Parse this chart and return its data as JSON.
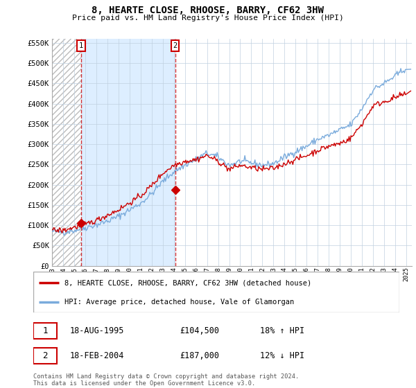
{
  "title": "8, HEARTE CLOSE, RHOOSE, BARRY, CF62 3HW",
  "subtitle": "Price paid vs. HM Land Registry's House Price Index (HPI)",
  "legend_label_red": "8, HEARTE CLOSE, RHOOSE, BARRY, CF62 3HW (detached house)",
  "legend_label_blue": "HPI: Average price, detached house, Vale of Glamorgan",
  "sale1_date": "18-AUG-1995",
  "sale1_price": "£104,500",
  "sale1_hpi": "18% ↑ HPI",
  "sale2_date": "18-FEB-2004",
  "sale2_price": "£187,000",
  "sale2_hpi": "12% ↓ HPI",
  "footer": "Contains HM Land Registry data © Crown copyright and database right 2024.\nThis data is licensed under the Open Government Licence v3.0.",
  "ylim": [
    0,
    560000
  ],
  "yticks": [
    0,
    50000,
    100000,
    150000,
    200000,
    250000,
    300000,
    350000,
    400000,
    450000,
    500000,
    550000
  ],
  "ytick_labels": [
    "£0",
    "£50K",
    "£100K",
    "£150K",
    "£200K",
    "£250K",
    "£300K",
    "£350K",
    "£400K",
    "£450K",
    "£500K",
    "£550K"
  ],
  "color_red": "#cc0000",
  "color_blue": "#7aabdc",
  "color_grid": "#c8d8e8",
  "sale1_x": 1995.625,
  "sale2_x": 2004.125,
  "sale1_y": 104500,
  "sale2_y": 187000,
  "xlim_start": 1993.0,
  "xlim_end": 2025.5,
  "xtick_years": [
    1993,
    1994,
    1995,
    1996,
    1997,
    1998,
    1999,
    2000,
    2001,
    2002,
    2003,
    2004,
    2005,
    2006,
    2007,
    2008,
    2009,
    2010,
    2011,
    2012,
    2013,
    2014,
    2015,
    2016,
    2017,
    2018,
    2019,
    2020,
    2021,
    2022,
    2023,
    2024,
    2025
  ]
}
